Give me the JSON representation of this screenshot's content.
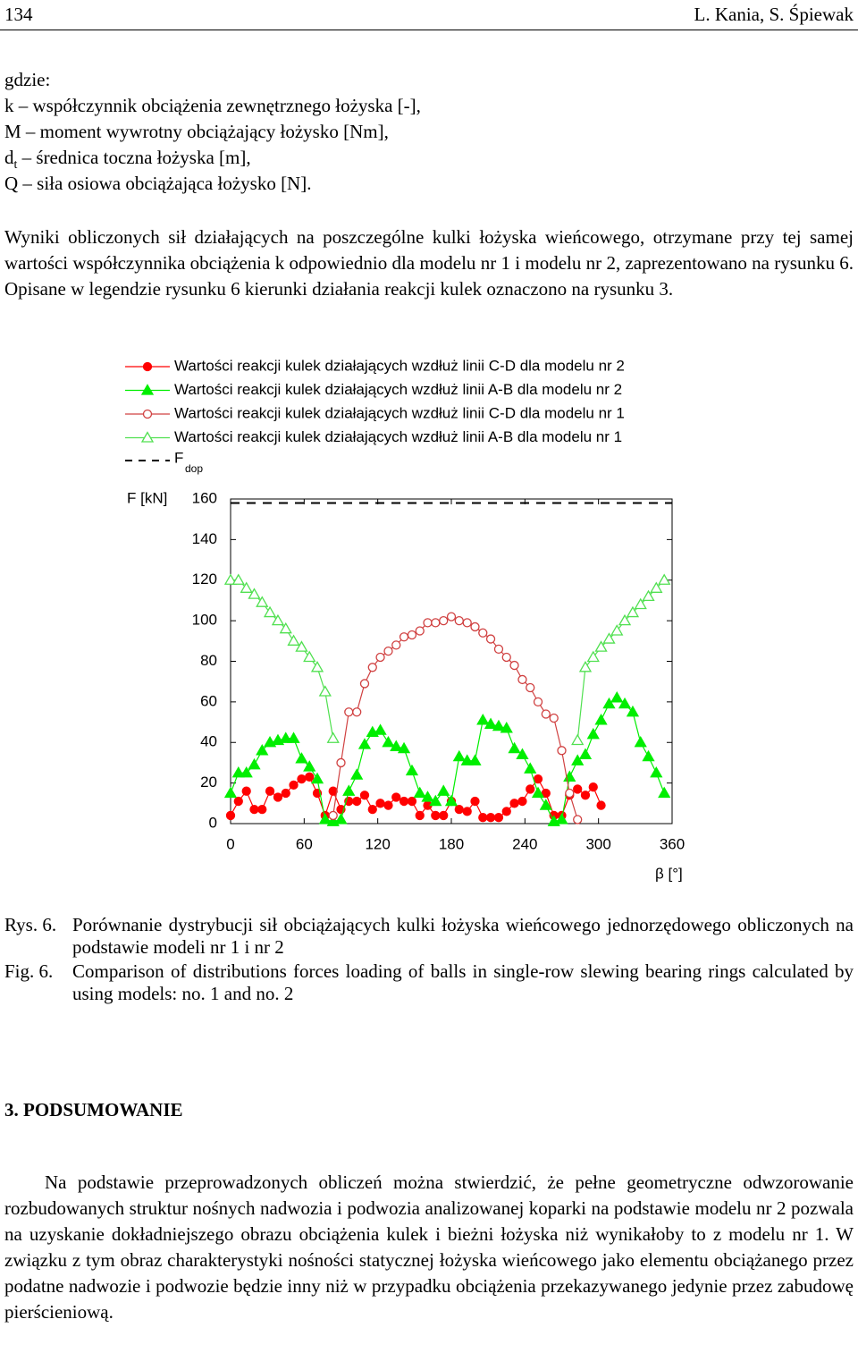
{
  "header": {
    "page_number": "134",
    "authors": "L. Kania, S. Śpiewak"
  },
  "definitions": {
    "intro": "gdzie:",
    "k": "k – współczynnik obciążenia zewnętrznego łożyska [-],",
    "M": "M – moment wywrotny obciążający łożysko [Nm],",
    "dt": {
      "symbol": "d",
      "subscript": "t",
      "text": " – średnica toczna łożyska [m],"
    },
    "Q": "Q – siła osiowa obciążająca łożysko [N]."
  },
  "paragraph_1": "Wyniki obliczonych sił działających na poszczególne kulki łożyska wieńcowego, otrzymane przy tej samej wartości współczynnika obciążenia k odpowiednio dla modelu nr 1 i modelu nr 2, zaprezentowano na rysunku 6. Opisane w legendzie rysunku 6 kierunki działania reakcji kulek oznaczono na rysunku 3.",
  "chart_data": {
    "type": "line",
    "y_label": "F [kN]",
    "x_label": "β [°]",
    "xlim": [
      0,
      360
    ],
    "xticks": [
      0,
      60,
      120,
      180,
      240,
      300,
      360
    ],
    "ylim": [
      0,
      160
    ],
    "yticks": [
      0,
      20,
      40,
      60,
      80,
      100,
      120,
      140,
      160
    ],
    "x": [
      0,
      6.4,
      12.9,
      19.3,
      25.7,
      32.1,
      38.6,
      45,
      51.4,
      57.9,
      64.3,
      70.7,
      77.1,
      83.6,
      90,
      96.4,
      102.9,
      109.3,
      115.7,
      122.1,
      128.6,
      135,
      141.4,
      147.9,
      154.3,
      160.7,
      167.1,
      173.6,
      180,
      186.4,
      192.9,
      199.3,
      205.7,
      212.1,
      218.6,
      225,
      231.4,
      237.9,
      244.3,
      250.7,
      257.1,
      263.6,
      270,
      276.4,
      282.9,
      289.3,
      295.7,
      302.1,
      308.6,
      315,
      321.4,
      327.9,
      334.3,
      340.7,
      347.1,
      353.6
    ],
    "series": [
      {
        "name": "Wartości reakcji kulek działających wzdłuż linii C-D dla modelu nr 2",
        "color": "#ff0000",
        "marker": "circle",
        "filled": true,
        "values": [
          4,
          11,
          16,
          7,
          7,
          16,
          13,
          15,
          19,
          22,
          23,
          15,
          4,
          16,
          7,
          11,
          11,
          14,
          7,
          10,
          9,
          13,
          11,
          11,
          4,
          9,
          4,
          4,
          11,
          7,
          6,
          11,
          3,
          3,
          3,
          6,
          10,
          11,
          17,
          22,
          15,
          4,
          4,
          14,
          17,
          14,
          18,
          9,
          null,
          null,
          null,
          null,
          null,
          null,
          null,
          null
        ]
      },
      {
        "name": "Wartości reakcji kulek działających wzdłuż linii A-B dla modelu nr 2",
        "color": "#00ee00",
        "marker": "triangle",
        "filled": true,
        "values": [
          15,
          25,
          25,
          29,
          36,
          40,
          41,
          42,
          42,
          32,
          28,
          22,
          2,
          1,
          2,
          16,
          24,
          39,
          45,
          46,
          40,
          38,
          37,
          26,
          15,
          13,
          11,
          16,
          11,
          33,
          31,
          31,
          51,
          49,
          48,
          47,
          37,
          34,
          27,
          15,
          9,
          1,
          2,
          23,
          31,
          34,
          44,
          51,
          59,
          62,
          59,
          55,
          40,
          33,
          25,
          15
        ]
      },
      {
        "name": "Wartości reakcji kulek działających wzdłuż linii C-D dla modelu nr 1",
        "color": "#d04040",
        "marker": "circle",
        "filled": false,
        "values": [
          null,
          null,
          null,
          null,
          null,
          null,
          null,
          null,
          null,
          null,
          null,
          null,
          null,
          4,
          30,
          55,
          55,
          69,
          77,
          82,
          85,
          88,
          92,
          93,
          95,
          99,
          99,
          100,
          102,
          100,
          99,
          97,
          94,
          91,
          86,
          82,
          78,
          71,
          67,
          60,
          54,
          52,
          36,
          15,
          2,
          null,
          null,
          null,
          null,
          null,
          null,
          null,
          null,
          null,
          null,
          null
        ]
      },
      {
        "name": "Wartości reakcji kulek działających wzdłuż linii A-B dla modelu nr 1",
        "color": "#50e050",
        "marker": "triangle",
        "filled": false,
        "values": [
          120,
          120,
          116,
          113,
          109,
          104,
          100,
          96,
          90,
          87,
          82,
          77,
          65,
          42,
          null,
          null,
          null,
          null,
          null,
          null,
          null,
          null,
          null,
          null,
          null,
          null,
          null,
          null,
          null,
          null,
          null,
          null,
          null,
          null,
          null,
          null,
          null,
          null,
          null,
          null,
          null,
          null,
          null,
          null,
          41,
          77,
          82,
          87,
          91,
          95,
          100,
          104,
          108,
          112,
          116,
          120
        ]
      }
    ],
    "threshold": {
      "name": "F",
      "subscript": "dop",
      "value": 158,
      "color": "#000000"
    }
  },
  "caption": {
    "pl_label": "Rys. 6.",
    "pl_text": "Porównanie dystrybucji sił obciążających kulki łożyska wieńcowego jednorzędowego obliczonych na podstawie modeli nr 1 i nr 2",
    "en_label": "Fig. 6.",
    "en_text": "Comparison of distributions forces loading of balls in single-row slewing bearing rings calculated by using models: no. 1 and no. 2"
  },
  "section": {
    "heading": "3. PODSUMOWANIE",
    "paragraph": "Na podstawie przeprowadzonych obliczeń można stwierdzić, że pełne geometryczne odwzorowanie rozbudowanych struktur nośnych nadwozia i podwozia analizowanej koparki na podstawie modelu nr 2 pozwala na uzyskanie dokładniejszego obrazu obciążenia kulek i bieżni łożyska niż wynikałoby to z modelu nr 1. W związku z tym obraz charakterystyki nośności statycznej łożyska wieńcowego jako elementu obciążanego przez podatne nadwozie i podwozie będzie inny niż w przypadku obciążenia przekazywanego jedynie przez zabudowę pierścieniową."
  }
}
